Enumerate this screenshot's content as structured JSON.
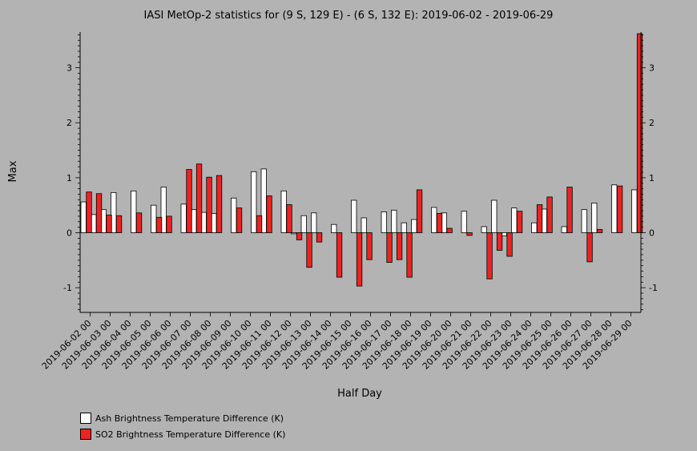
{
  "chart_data": {
    "type": "bar",
    "title": "IASI MetOp-2 statistics for (9 S, 129 E) - (6 S, 132 E): 2019-06-02 - 2019-06-29",
    "xlabel": "Half Day",
    "ylabel": "Max",
    "ylim": [
      -1.45,
      3.65
    ],
    "yticks": [
      -1,
      0,
      1,
      2,
      3
    ],
    "categories": [
      "2019-06-02 00",
      "2019-06-02 12",
      "2019-06-03 00",
      "2019-06-03 12",
      "2019-06-04 00",
      "2019-06-04 12",
      "2019-06-05 00",
      "2019-06-05 12",
      "2019-06-06 00",
      "2019-06-06 12",
      "2019-06-07 00",
      "2019-06-07 12",
      "2019-06-08 00",
      "2019-06-08 12",
      "2019-06-09 00",
      "2019-06-09 12",
      "2019-06-10 00",
      "2019-06-10 12",
      "2019-06-11 00",
      "2019-06-11 12",
      "2019-06-12 00",
      "2019-06-12 12",
      "2019-06-13 00",
      "2019-06-13 12",
      "2019-06-14 00",
      "2019-06-14 12",
      "2019-06-15 00",
      "2019-06-15 12",
      "2019-06-16 00",
      "2019-06-16 12",
      "2019-06-17 00",
      "2019-06-17 12",
      "2019-06-18 00",
      "2019-06-18 12",
      "2019-06-19 00",
      "2019-06-19 12",
      "2019-06-20 00",
      "2019-06-20 12",
      "2019-06-21 00",
      "2019-06-21 12",
      "2019-06-22 00",
      "2019-06-22 12",
      "2019-06-23 00",
      "2019-06-23 12",
      "2019-06-24 00",
      "2019-06-24 12",
      "2019-06-25 00",
      "2019-06-25 12",
      "2019-06-26 00",
      "2019-06-26 12",
      "2019-06-27 00",
      "2019-06-27 12",
      "2019-06-28 00",
      "2019-06-28 12",
      "2019-06-29 00",
      "2019-06-29 12"
    ],
    "xtick_labels": [
      "2019-06-02 00",
      "2019-06-03 00",
      "2019-06-04 00",
      "2019-06-05 00",
      "2019-06-06 00",
      "2019-06-07 00",
      "2019-06-08 00",
      "2019-06-09 00",
      "2019-06-10 00",
      "2019-06-11 00",
      "2019-06-12 00",
      "2019-06-13 00",
      "2019-06-14 00",
      "2019-06-15 00",
      "2019-06-16 00",
      "2019-06-17 00",
      "2019-06-18 00",
      "2019-06-19 00",
      "2019-06-20 00",
      "2019-06-21 00",
      "2019-06-22 00",
      "2019-06-23 00",
      "2019-06-24 00",
      "2019-06-25 00",
      "2019-06-26 00",
      "2019-06-27 00",
      "2019-06-28 00",
      "2019-06-29 00"
    ],
    "series": [
      {
        "name": "Ash Brightness Temperature Difference (K)",
        "color": "#ffffff",
        "values": [
          0.56,
          0.33,
          0.42,
          0.73,
          null,
          0.76,
          null,
          0.5,
          0.83,
          null,
          0.52,
          0.42,
          0.37,
          0.35,
          null,
          0.63,
          null,
          1.11,
          1.16,
          null,
          0.76,
          -0.02,
          0.31,
          0.36,
          null,
          0.15,
          null,
          0.59,
          0.27,
          null,
          0.38,
          0.41,
          0.18,
          0.24,
          null,
          0.46,
          0.36,
          null,
          0.39,
          null,
          0.11,
          0.59,
          -0.06,
          0.45,
          null,
          0.18,
          0.43,
          null,
          0.11,
          null,
          0.42,
          0.54,
          null,
          0.87,
          null,
          0.78
        ]
      },
      {
        "name": "SO2 Brightness Temperature Difference (K)",
        "color": "#ee2222",
        "values": [
          0.74,
          0.71,
          0.32,
          0.31,
          null,
          0.36,
          null,
          0.28,
          0.3,
          null,
          1.15,
          1.25,
          1.01,
          1.04,
          null,
          0.45,
          null,
          0.31,
          0.67,
          null,
          0.51,
          -0.13,
          -0.63,
          -0.17,
          null,
          -0.81,
          null,
          -0.97,
          -0.49,
          null,
          -0.54,
          -0.49,
          -0.81,
          0.78,
          null,
          0.35,
          0.08,
          null,
          -0.05,
          null,
          -0.84,
          -0.32,
          -0.43,
          0.39,
          null,
          0.51,
          0.65,
          null,
          0.83,
          null,
          -0.53,
          0.06,
          null,
          0.85,
          null,
          3.62
        ]
      }
    ],
    "legend": {
      "position": "bottom-left"
    },
    "grid": false
  }
}
